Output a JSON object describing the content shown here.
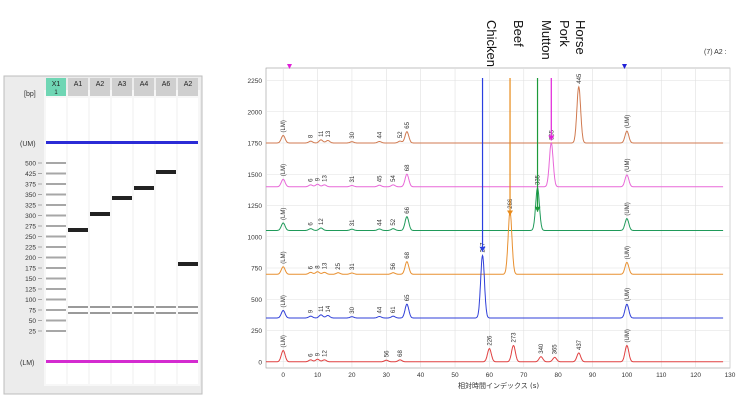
{
  "gel": {
    "bp_label": "[bp]",
    "lanes": [
      {
        "label": "X1",
        "sublabel": "1",
        "highlighted": true
      },
      {
        "label": "A1",
        "sublabel": ""
      },
      {
        "label": "A2",
        "sublabel": ""
      },
      {
        "label": "A3",
        "sublabel": ""
      },
      {
        "label": "A4",
        "sublabel": ""
      },
      {
        "label": "A6",
        "sublabel": ""
      },
      {
        "label": "A2",
        "sublabel": ""
      }
    ],
    "upper_marker_label": "(UM)",
    "lower_marker_label": "(LM)",
    "ladder_ticks": [
      "500",
      "425",
      "375",
      "350",
      "325",
      "300",
      "275",
      "250",
      "225",
      "200",
      "175",
      "150",
      "125",
      "100",
      "75",
      "50",
      "25"
    ],
    "colors": {
      "upper_marker": "#2b2bd6",
      "lower_marker": "#d42bd0",
      "lane_header": "#cfcfcf",
      "ladder_header": "#6fd6b4"
    }
  },
  "annotations": {
    "species": [
      {
        "name": "Chicken",
        "color": "#2a3fe0"
      },
      {
        "name": "Beef",
        "color": "#e88a1a"
      },
      {
        "name": "Mutton",
        "color": "#1c9a3a"
      },
      {
        "name": "Pork",
        "color": "#e020d8"
      },
      {
        "name": "Horse",
        "color": "#6a4a3a"
      }
    ],
    "corner_label": "(7) A2 :"
  },
  "chart_data": {
    "type": "line",
    "xlabel": "相対時間インデックス (s)",
    "ylabel": "",
    "xlim": [
      -5,
      130
    ],
    "ylim": [
      -50,
      2350
    ],
    "x_ticks": [
      0,
      10,
      20,
      30,
      40,
      50,
      60,
      70,
      80,
      90,
      100,
      110,
      120,
      130
    ],
    "y_ticks": [
      0,
      250,
      500,
      750,
      1000,
      1250,
      1500,
      1750,
      2000,
      2250
    ],
    "grid": true,
    "series": [
      {
        "name": "Horse",
        "color": "#d07a50",
        "baseline": 1750,
        "peaks": [
          {
            "x": 0,
            "h": 60,
            "label": "(LM)"
          },
          {
            "x": 8,
            "h": 15,
            "label": "8"
          },
          {
            "x": 11,
            "h": 25,
            "label": "11"
          },
          {
            "x": 13,
            "h": 20,
            "label": "13"
          },
          {
            "x": 20,
            "h": 10,
            "label": "30"
          },
          {
            "x": 28,
            "h": 12,
            "label": "44"
          },
          {
            "x": 34,
            "h": 15,
            "label": "52"
          },
          {
            "x": 36,
            "h": 90,
            "label": "65"
          },
          {
            "x": 86,
            "h": 450,
            "label": "445"
          },
          {
            "x": 100,
            "h": 95,
            "label": "(UM)"
          }
        ]
      },
      {
        "name": "Pork",
        "color": "#e868d8",
        "baseline": 1400,
        "peaks": [
          {
            "x": 0,
            "h": 60,
            "label": "(LM)"
          },
          {
            "x": 8,
            "h": 15,
            "label": "6"
          },
          {
            "x": 10,
            "h": 20,
            "label": "9"
          },
          {
            "x": 12,
            "h": 15,
            "label": "13"
          },
          {
            "x": 20,
            "h": 10,
            "label": "31"
          },
          {
            "x": 28,
            "h": 12,
            "label": "45"
          },
          {
            "x": 32,
            "h": 15,
            "label": "54"
          },
          {
            "x": 36,
            "h": 100,
            "label": "68"
          },
          {
            "x": 78,
            "h": 350,
            "label": "365"
          },
          {
            "x": 100,
            "h": 95,
            "label": "(UM)"
          }
        ]
      },
      {
        "name": "Mutton",
        "color": "#1f9a5a",
        "baseline": 1050,
        "peaks": [
          {
            "x": 0,
            "h": 60,
            "label": "(LM)"
          },
          {
            "x": 8,
            "h": 15,
            "label": "6"
          },
          {
            "x": 11,
            "h": 20,
            "label": "12"
          },
          {
            "x": 20,
            "h": 10,
            "label": "31"
          },
          {
            "x": 28,
            "h": 12,
            "label": "44"
          },
          {
            "x": 32,
            "h": 15,
            "label": "52"
          },
          {
            "x": 36,
            "h": 110,
            "label": "66"
          },
          {
            "x": 74,
            "h": 340,
            "label": "335"
          },
          {
            "x": 100,
            "h": 95,
            "label": "(UM)"
          }
        ]
      },
      {
        "name": "Beef",
        "color": "#e89030",
        "baseline": 700,
        "peaks": [
          {
            "x": 0,
            "h": 60,
            "label": "(LM)"
          },
          {
            "x": 8,
            "h": 15,
            "label": "6"
          },
          {
            "x": 10,
            "h": 20,
            "label": "8"
          },
          {
            "x": 12,
            "h": 15,
            "label": "13"
          },
          {
            "x": 16,
            "h": 12,
            "label": "25"
          },
          {
            "x": 20,
            "h": 10,
            "label": "31"
          },
          {
            "x": 32,
            "h": 12,
            "label": "56"
          },
          {
            "x": 36,
            "h": 100,
            "label": "68"
          },
          {
            "x": 66,
            "h": 500,
            "label": "266"
          },
          {
            "x": 100,
            "h": 95,
            "label": "(UM)"
          }
        ]
      },
      {
        "name": "Chicken",
        "color": "#2f3fd8",
        "baseline": 350,
        "peaks": [
          {
            "x": 0,
            "h": 60,
            "label": "(LM)"
          },
          {
            "x": 8,
            "h": 15,
            "label": "9"
          },
          {
            "x": 11,
            "h": 25,
            "label": "11"
          },
          {
            "x": 13,
            "h": 20,
            "label": "14"
          },
          {
            "x": 20,
            "h": 10,
            "label": "30"
          },
          {
            "x": 28,
            "h": 12,
            "label": "44"
          },
          {
            "x": 32,
            "h": 15,
            "label": "61"
          },
          {
            "x": 36,
            "h": 110,
            "label": "65"
          },
          {
            "x": 58,
            "h": 500,
            "label": "217"
          },
          {
            "x": 100,
            "h": 110,
            "label": "(UM)"
          }
        ]
      },
      {
        "name": "",
        "color": "#e04040",
        "baseline": 0,
        "peaks": [
          {
            "x": 0,
            "h": 90,
            "label": "(LM)"
          },
          {
            "x": 8,
            "h": 15,
            "label": "6"
          },
          {
            "x": 10,
            "h": 20,
            "label": "9"
          },
          {
            "x": 12,
            "h": 15,
            "label": "12"
          },
          {
            "x": 30,
            "h": 12,
            "label": "56"
          },
          {
            "x": 34,
            "h": 15,
            "label": "68"
          },
          {
            "x": 60,
            "h": 105,
            "label": "226"
          },
          {
            "x": 67,
            "h": 130,
            "label": "273"
          },
          {
            "x": 75,
            "h": 40,
            "label": "340"
          },
          {
            "x": 79,
            "h": 35,
            "label": "365"
          },
          {
            "x": 86,
            "h": 70,
            "label": "437"
          },
          {
            "x": 100,
            "h": 130,
            "label": "(UM)"
          }
        ]
      }
    ]
  }
}
